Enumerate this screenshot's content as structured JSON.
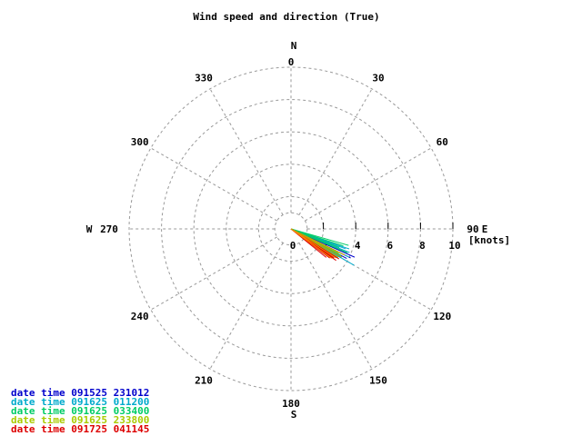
{
  "chart_data": {
    "type": "polar-vector",
    "title": "Wind speed and direction (True)",
    "radial_axis": {
      "label": "[knots]",
      "range": [
        0,
        10
      ],
      "ticks": [
        0,
        2,
        4,
        6,
        8,
        10
      ],
      "rings": [
        2,
        4,
        6,
        8,
        10
      ]
    },
    "angular_axis": {
      "ticks": [
        0,
        30,
        60,
        90,
        120,
        150,
        180,
        210,
        240,
        270,
        300,
        330
      ],
      "compass": {
        "N": "N",
        "E": "E",
        "S": "S",
        "W": "W"
      },
      "spokes_every_deg": 30
    },
    "grid": true,
    "legend_placement": "bottom-left",
    "series": [
      {
        "name": "date time 091525 231012",
        "color": "#0000cc",
        "vectors": [
          {
            "direction": 118,
            "speed": 3.9
          },
          {
            "direction": 116,
            "speed": 4.1
          },
          {
            "direction": 120,
            "speed": 3.6
          },
          {
            "direction": 114,
            "speed": 4.3
          },
          {
            "direction": 122,
            "speed": 3.4
          }
        ]
      },
      {
        "name": "date time 091625 011200",
        "color": "#00aacc",
        "vectors": [
          {
            "direction": 109,
            "speed": 3.8
          },
          {
            "direction": 112,
            "speed": 3.9
          },
          {
            "direction": 120,
            "speed": 4.5
          },
          {
            "direction": 116,
            "speed": 4.0
          },
          {
            "direction": 110,
            "speed": 3.6
          }
        ]
      },
      {
        "name": "date time 091625 033400",
        "color": "#00cc66",
        "vectors": [
          {
            "direction": 106,
            "speed": 3.7
          },
          {
            "direction": 108,
            "speed": 3.4
          },
          {
            "direction": 111,
            "speed": 3.2
          },
          {
            "direction": 113,
            "speed": 3.8
          },
          {
            "direction": 118,
            "speed": 3.5
          }
        ]
      },
      {
        "name": "date time 091625 233800",
        "color": "#aacc00",
        "vectors": [
          {
            "direction": 121,
            "speed": 3.4
          },
          {
            "direction": 124,
            "speed": 3.1
          },
          {
            "direction": 119,
            "speed": 3.6
          },
          {
            "direction": 126,
            "speed": 3.0
          },
          {
            "direction": 117,
            "speed": 3.3
          }
        ]
      },
      {
        "name": "date time 091725 041145",
        "color": "#dd0000",
        "vectors": [
          {
            "direction": 124,
            "speed": 3.2
          },
          {
            "direction": 127,
            "speed": 3.0
          },
          {
            "direction": 122,
            "speed": 3.5
          },
          {
            "direction": 129,
            "speed": 2.8
          },
          {
            "direction": 125,
            "speed": 3.4
          }
        ]
      }
    ],
    "extra_colors": [
      "#ff8800",
      "#cc9900"
    ]
  }
}
